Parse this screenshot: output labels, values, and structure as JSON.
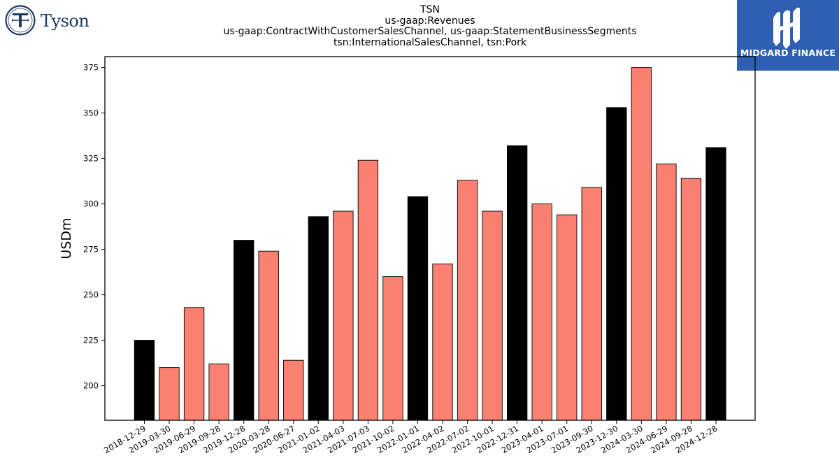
{
  "header": {
    "title_lines": [
      "TSN",
      "us-gaap:Revenues",
      "us-gaap:ContractWithCustomerSalesChannel, us-gaap:StatementBusinessSegments",
      "tsn:InternationalSalesChannel, tsn:Pork"
    ]
  },
  "logos": {
    "left": {
      "name": "Tyson",
      "icon": "tyson-t-emblem-icon"
    },
    "right": {
      "name": "MIDGARD FINANCE",
      "icon": "midgard-mark-icon",
      "color": "#2f5fb3"
    }
  },
  "chart_data": {
    "type": "bar",
    "title": "TSN\nus-gaap:Revenues\nus-gaap:ContractWithCustomerSalesChannel, us-gaap:StatementBusinessSegments\ntsn:InternationalSalesChannel, tsn:Pork",
    "xlabel": "",
    "ylabel": "USDm",
    "ylim": [
      181,
      381
    ],
    "yticks": [
      200,
      225,
      250,
      275,
      300,
      325,
      350,
      375
    ],
    "grid": false,
    "categories": [
      "2018-12-29",
      "2019-03-30",
      "2019-06-29",
      "2019-09-28",
      "2019-12-28",
      "2020-03-28",
      "2020-06-27",
      "2021-01-02",
      "2021-04-03",
      "2021-07-03",
      "2021-10-02",
      "2022-01-01",
      "2022-04-02",
      "2022-07-02",
      "2022-10-01",
      "2022-12-31",
      "2023-04-01",
      "2023-07-01",
      "2023-09-30",
      "2023-12-30",
      "2024-03-30",
      "2024-06-29",
      "2024-09-28",
      "2024-12-28"
    ],
    "values": [
      225,
      210,
      243,
      212,
      280,
      274,
      214,
      293,
      296,
      324,
      260,
      304,
      267,
      313,
      296,
      332,
      300,
      294,
      309,
      353,
      375,
      322,
      314,
      331
    ],
    "highlight": [
      true,
      false,
      false,
      false,
      true,
      false,
      false,
      true,
      false,
      false,
      false,
      true,
      false,
      false,
      false,
      true,
      false,
      false,
      false,
      true,
      false,
      false,
      false,
      true
    ],
    "colors": {
      "highlight": "#000000",
      "normal": "#fa8072",
      "edge": "#000000"
    }
  }
}
